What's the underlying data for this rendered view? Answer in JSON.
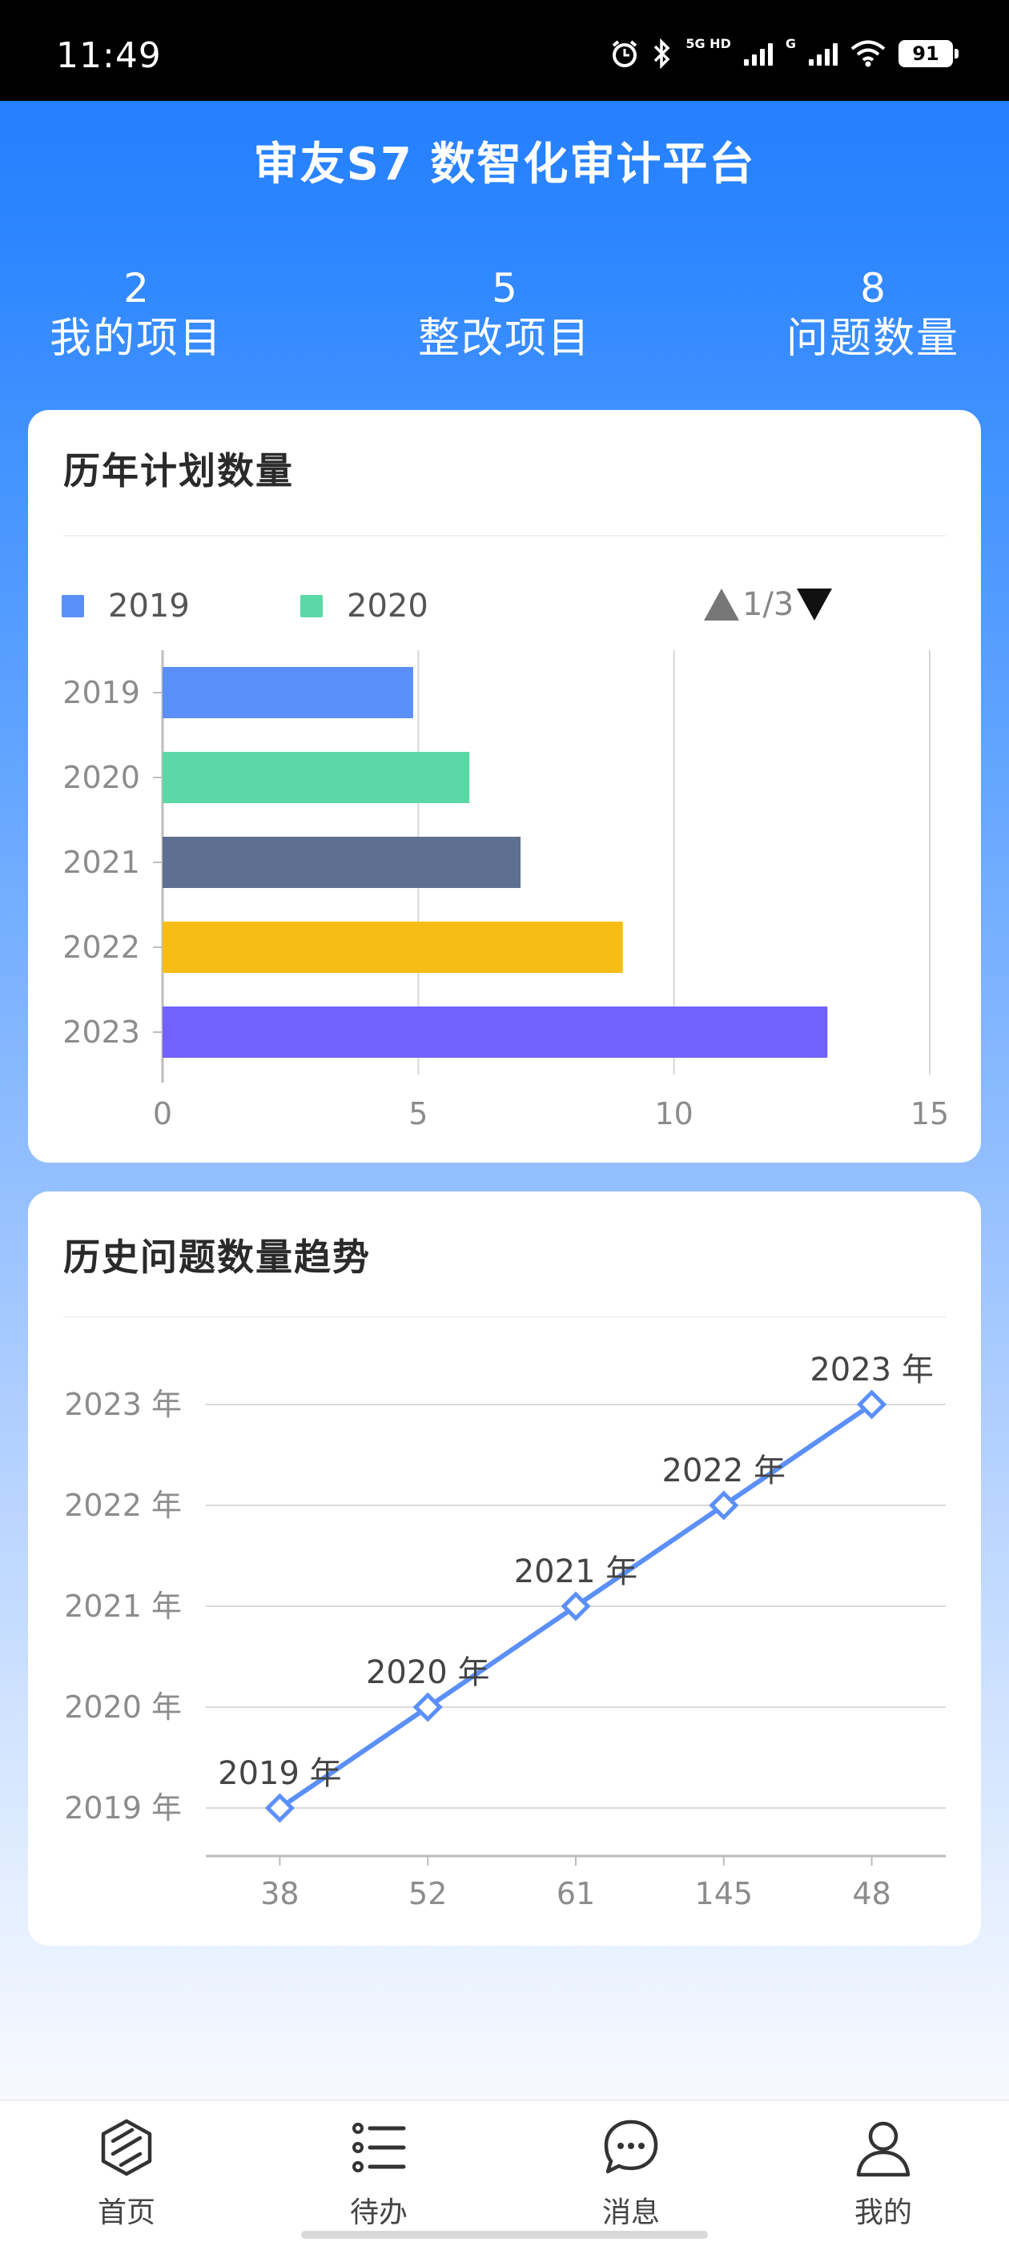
{
  "status_bar": {
    "time": "11:49",
    "battery": "91",
    "net": "5G HD",
    "net2": "G"
  },
  "app": {
    "title": "审友S7 数智化审计平台"
  },
  "stats": [
    {
      "value": "2",
      "label": "我的项目"
    },
    {
      "value": "5",
      "label": "整改项目"
    },
    {
      "value": "8",
      "label": "问题数量"
    }
  ],
  "plan_card": {
    "title": "历年计划数量",
    "legend": [
      {
        "name": "2019",
        "color": "#5b8ff9"
      },
      {
        "name": "2020",
        "color": "#5ad8a6"
      }
    ],
    "pager": "1/3"
  },
  "trend_card": {
    "title": "历史问题数量趋势"
  },
  "chart_data": [
    {
      "type": "bar",
      "orientation": "horizontal",
      "categories": [
        "2019",
        "2020",
        "2021",
        "2022",
        "2023"
      ],
      "values": [
        4.9,
        6,
        7,
        9,
        13
      ],
      "colors": [
        "#5b8ff9",
        "#5ad8a6",
        "#5d7092",
        "#f6bd16",
        "#7262fd"
      ],
      "xlim": [
        0,
        15
      ],
      "x_ticks": [
        "0",
        "5",
        "10",
        "15"
      ],
      "grid": true,
      "legend": [
        "2019",
        "2020"
      ],
      "legend_position": "top-left"
    },
    {
      "type": "line",
      "categories": [
        "38",
        "52",
        "61",
        "145",
        "48"
      ],
      "y_categories": [
        "2019 年",
        "2020 年",
        "2021 年",
        "2022 年",
        "2023 年"
      ],
      "points": [
        "2019 年",
        "2020 年",
        "2021 年",
        "2022 年",
        "2023 年"
      ],
      "data_labels": [
        "2019 年",
        "2020 年",
        "2021 年",
        "2022 年",
        "2023 年"
      ],
      "color": "#5b8ff9",
      "grid": true
    }
  ],
  "tabbar": {
    "items": [
      {
        "label": "首页",
        "icon": "home-cube-icon"
      },
      {
        "label": "待办",
        "icon": "list-icon"
      },
      {
        "label": "消息",
        "icon": "chat-bubble-icon"
      },
      {
        "label": "我的",
        "icon": "user-icon"
      }
    ]
  }
}
